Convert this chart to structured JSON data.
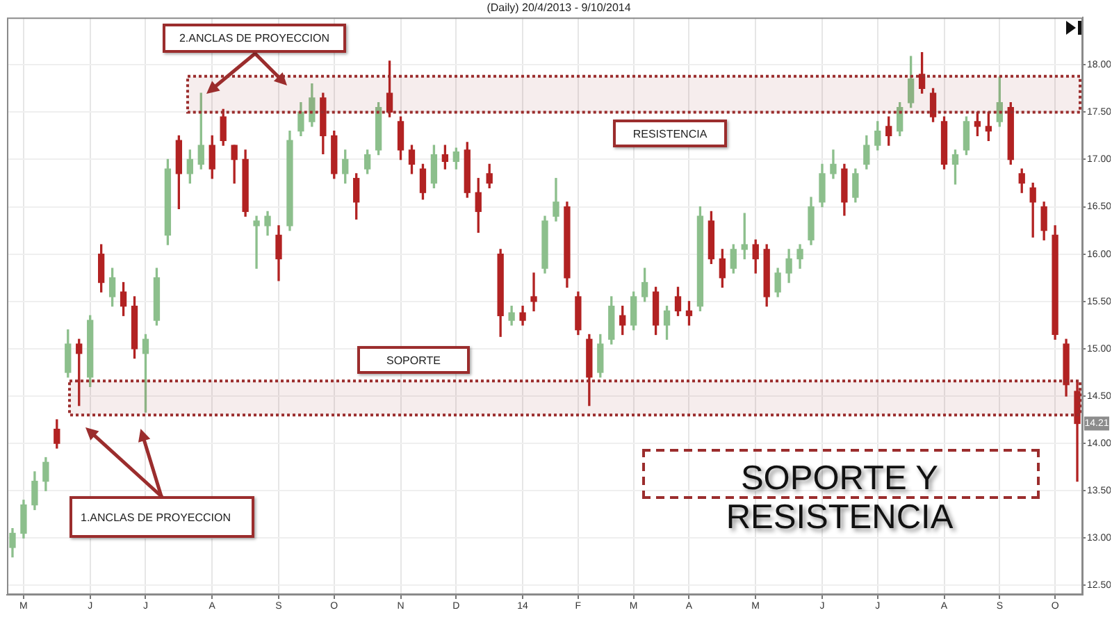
{
  "chart_data": {
    "type": "candlestick",
    "title": "(Daily) 20/4/2013 - 9/10/2014",
    "categories": [
      null,
      "M",
      null,
      null,
      null,
      null,
      null,
      "J",
      null,
      null,
      null,
      null,
      "J",
      null,
      null,
      null,
      null,
      null,
      "A",
      null,
      null,
      null,
      null,
      null,
      "S",
      null,
      null,
      null,
      null,
      "O",
      null,
      null,
      null,
      null,
      null,
      "N",
      null,
      null,
      null,
      null,
      "D",
      null,
      null,
      null,
      null,
      null,
      "14",
      null,
      null,
      null,
      null,
      "F",
      null,
      null,
      null,
      null,
      "M",
      null,
      null,
      null,
      null,
      "A",
      null,
      null,
      null,
      null,
      null,
      "M",
      null,
      null,
      null,
      null,
      null,
      "J",
      null,
      null,
      null,
      null,
      "J",
      null,
      null,
      null,
      null,
      null,
      "A",
      null,
      null,
      null,
      null,
      "S",
      null,
      null,
      null,
      null,
      "O",
      null,
      null
    ],
    "ohlc": [
      [
        12.9,
        13.1,
        12.8,
        13.05
      ],
      [
        13.05,
        13.4,
        13.0,
        13.35
      ],
      [
        13.35,
        13.7,
        13.3,
        13.6
      ],
      [
        13.6,
        13.85,
        13.5,
        13.8
      ],
      [
        14.15,
        14.25,
        13.95,
        14.0
      ],
      [
        14.75,
        15.2,
        14.7,
        15.05
      ],
      [
        15.05,
        15.1,
        14.4,
        14.95
      ],
      [
        14.7,
        15.35,
        14.6,
        15.3
      ],
      [
        16.0,
        16.1,
        15.6,
        15.7
      ],
      [
        15.55,
        15.85,
        15.45,
        15.75
      ],
      [
        15.6,
        15.7,
        15.35,
        15.45
      ],
      [
        15.45,
        15.55,
        14.9,
        15.0
      ],
      [
        14.95,
        15.15,
        14.33,
        15.1
      ],
      [
        15.3,
        15.85,
        15.25,
        15.75
      ],
      [
        16.2,
        17.0,
        16.1,
        16.9
      ],
      [
        17.2,
        17.25,
        16.48,
        16.85
      ],
      [
        16.85,
        17.1,
        16.75,
        17.0
      ],
      [
        16.95,
        17.7,
        16.9,
        17.15
      ],
      [
        17.15,
        17.25,
        16.8,
        16.9
      ],
      [
        17.45,
        17.53,
        17.15,
        17.2
      ],
      [
        17.15,
        17.15,
        16.75,
        17.0
      ],
      [
        17.0,
        17.1,
        16.4,
        16.45
      ],
      [
        16.3,
        16.4,
        15.85,
        16.35
      ],
      [
        16.3,
        16.45,
        16.2,
        16.4
      ],
      [
        16.2,
        16.3,
        15.72,
        15.95
      ],
      [
        16.3,
        17.3,
        16.25,
        17.2
      ],
      [
        17.3,
        17.6,
        17.25,
        17.5
      ],
      [
        17.4,
        17.8,
        17.35,
        17.65
      ],
      [
        17.65,
        17.7,
        17.06,
        17.25
      ],
      [
        17.25,
        17.3,
        16.8,
        16.85
      ],
      [
        16.85,
        17.1,
        16.75,
        17.0
      ],
      [
        16.8,
        16.85,
        16.37,
        16.55
      ],
      [
        16.9,
        17.1,
        16.85,
        17.05
      ],
      [
        17.1,
        17.6,
        17.05,
        17.55
      ],
      [
        17.7,
        18.04,
        17.45,
        17.5
      ],
      [
        17.4,
        17.45,
        17.0,
        17.1
      ],
      [
        17.1,
        17.15,
        16.85,
        16.95
      ],
      [
        16.9,
        16.95,
        16.58,
        16.65
      ],
      [
        16.75,
        17.15,
        16.7,
        17.05
      ],
      [
        17.05,
        17.15,
        16.9,
        16.98
      ],
      [
        16.98,
        17.12,
        16.9,
        17.08
      ],
      [
        17.1,
        17.18,
        16.6,
        16.65
      ],
      [
        16.65,
        16.8,
        16.23,
        16.45
      ],
      [
        16.85,
        16.95,
        16.7,
        16.75
      ],
      [
        16.0,
        16.05,
        15.13,
        15.35
      ],
      [
        15.3,
        15.45,
        15.25,
        15.38
      ],
      [
        15.38,
        15.45,
        15.25,
        15.3
      ],
      [
        15.55,
        15.8,
        15.4,
        15.5
      ],
      [
        15.85,
        16.4,
        15.8,
        16.35
      ],
      [
        16.4,
        16.8,
        16.35,
        16.55
      ],
      [
        16.5,
        16.55,
        15.65,
        15.75
      ],
      [
        15.55,
        15.6,
        15.15,
        15.2
      ],
      [
        15.1,
        15.15,
        14.4,
        14.7
      ],
      [
        14.75,
        15.15,
        14.7,
        15.05
      ],
      [
        15.1,
        15.55,
        15.05,
        15.45
      ],
      [
        15.35,
        15.45,
        15.15,
        15.25
      ],
      [
        15.25,
        15.6,
        15.2,
        15.55
      ],
      [
        15.55,
        15.85,
        15.5,
        15.7
      ],
      [
        15.6,
        15.65,
        15.15,
        15.25
      ],
      [
        15.25,
        15.45,
        15.1,
        15.4
      ],
      [
        15.55,
        15.65,
        15.35,
        15.4
      ],
      [
        15.4,
        15.5,
        15.25,
        15.35
      ],
      [
        15.45,
        16.5,
        15.4,
        16.4
      ],
      [
        16.35,
        16.45,
        15.9,
        15.95
      ],
      [
        15.95,
        16.05,
        15.65,
        15.75
      ],
      [
        15.85,
        16.1,
        15.8,
        16.05
      ],
      [
        16.05,
        16.43,
        15.95,
        16.1
      ],
      [
        16.1,
        16.15,
        15.8,
        15.95
      ],
      [
        16.05,
        16.1,
        15.45,
        15.55
      ],
      [
        15.6,
        15.85,
        15.55,
        15.8
      ],
      [
        15.8,
        16.05,
        15.7,
        15.95
      ],
      [
        15.95,
        16.1,
        15.85,
        16.05
      ],
      [
        16.15,
        16.6,
        16.1,
        16.5
      ],
      [
        16.55,
        16.95,
        16.5,
        16.85
      ],
      [
        16.85,
        17.1,
        16.8,
        16.95
      ],
      [
        16.9,
        16.95,
        16.41,
        16.55
      ],
      [
        16.6,
        16.9,
        16.55,
        16.85
      ],
      [
        16.95,
        17.25,
        16.9,
        17.15
      ],
      [
        17.15,
        17.4,
        17.1,
        17.3
      ],
      [
        17.35,
        17.45,
        17.15,
        17.25
      ],
      [
        17.3,
        17.6,
        17.25,
        17.55
      ],
      [
        17.6,
        18.09,
        17.55,
        17.85
      ],
      [
        17.9,
        18.13,
        17.7,
        17.75
      ],
      [
        17.7,
        17.75,
        17.4,
        17.45
      ],
      [
        17.4,
        17.45,
        16.9,
        16.95
      ],
      [
        16.95,
        17.1,
        16.74,
        17.05
      ],
      [
        17.1,
        17.45,
        17.05,
        17.4
      ],
      [
        17.4,
        17.5,
        17.25,
        17.35
      ],
      [
        17.35,
        17.5,
        17.2,
        17.3
      ],
      [
        17.4,
        17.87,
        17.35,
        17.6
      ],
      [
        17.55,
        17.6,
        16.95,
        17.0
      ],
      [
        16.85,
        16.9,
        16.65,
        16.75
      ],
      [
        16.7,
        16.75,
        16.18,
        16.55
      ],
      [
        16.5,
        16.55,
        16.15,
        16.25
      ],
      [
        16.2,
        16.3,
        15.1,
        15.15
      ],
      [
        15.05,
        15.1,
        14.5,
        14.62
      ],
      [
        14.55,
        14.65,
        13.6,
        14.21
      ]
    ],
    "colors": [
      "#8cbf8c",
      "#8cbf8c",
      "#8cbf8c",
      "#8cbf8c",
      "#b22222",
      "#8cbf8c",
      "#b22222",
      "#8cbf8c",
      "#b22222",
      "#8cbf8c",
      "#b22222",
      "#b22222",
      "#8cbf8c",
      "#8cbf8c",
      "#8cbf8c",
      "#b22222",
      "#8cbf8c",
      "#8cbf8c",
      "#b22222",
      "#b22222",
      "#b22222",
      "#b22222",
      "#8cbf8c",
      "#8cbf8c",
      "#b22222",
      "#8cbf8c",
      "#8cbf8c",
      "#8cbf8c",
      "#b22222",
      "#b22222",
      "#8cbf8c",
      "#b22222",
      "#8cbf8c",
      "#8cbf8c",
      "#b22222",
      "#b22222",
      "#b22222",
      "#b22222",
      "#8cbf8c",
      "#b22222",
      "#8cbf8c",
      "#b22222",
      "#b22222",
      "#b22222",
      "#b22222",
      "#8cbf8c",
      "#b22222",
      "#b22222",
      "#8cbf8c",
      "#8cbf8c",
      "#b22222",
      "#b22222",
      "#b22222",
      "#8cbf8c",
      "#8cbf8c",
      "#b22222",
      "#8cbf8c",
      "#8cbf8c",
      "#b22222",
      "#8cbf8c",
      "#b22222",
      "#b22222",
      "#8cbf8c",
      "#b22222",
      "#b22222",
      "#8cbf8c",
      "#8cbf8c",
      "#b22222",
      "#b22222",
      "#8cbf8c",
      "#8cbf8c",
      "#8cbf8c",
      "#8cbf8c",
      "#8cbf8c",
      "#8cbf8c",
      "#b22222",
      "#8cbf8c",
      "#8cbf8c",
      "#8cbf8c",
      "#b22222",
      "#8cbf8c",
      "#8cbf8c",
      "#b22222",
      "#b22222",
      "#b22222",
      "#8cbf8c",
      "#8cbf8c",
      "#b22222",
      "#b22222",
      "#8cbf8c",
      "#b22222",
      "#b22222",
      "#b22222",
      "#b22222",
      "#b22222",
      "#b22222",
      "#b22222"
    ],
    "ylim": [
      12.4,
      18.5
    ],
    "yticks": [
      {
        "value": 12.5,
        "label": "12.50"
      },
      {
        "value": 13,
        "label": "13.00"
      },
      {
        "value": 13.5,
        "label": "13.50"
      },
      {
        "value": 14,
        "label": "14.00"
      },
      {
        "value": 14.5,
        "label": "14.50"
      },
      {
        "value": 15,
        "label": "15.00"
      },
      {
        "value": 15.5,
        "label": "15.50"
      },
      {
        "value": 16,
        "label": "16.00"
      },
      {
        "value": 16.5,
        "label": "16.50"
      },
      {
        "value": 17,
        "label": "17.00"
      },
      {
        "value": 17.5,
        "label": "17.50"
      },
      {
        "value": 18,
        "label": "18.00"
      }
    ],
    "grid": true,
    "bands": [
      {
        "axis": "y",
        "from": 17.5,
        "to": 17.88,
        "label": "RESISTENCIA",
        "color": "#9b2d2d"
      },
      {
        "axis": "y",
        "from": 14.3,
        "to": 14.66,
        "label": "SOPORTE",
        "color": "#9b2d2d"
      }
    ],
    "annotations": [
      "2.ANCLAS DE PROYECCION",
      "1.ANCLAS DE PROYECCION",
      "SOPORTE Y RESISTENCIA",
      {
        "text": "14.21",
        "y": 14.21
      }
    ]
  }
}
